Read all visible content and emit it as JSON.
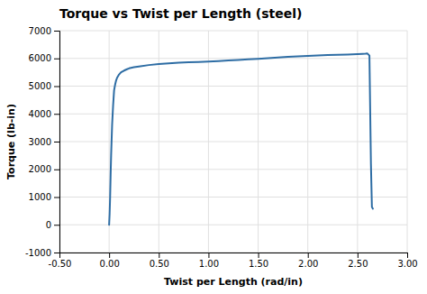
{
  "chart_data": {
    "type": "line",
    "title": "Torque vs Twist per Length (steel)",
    "xlabel": "Twist per Length (rad/in)",
    "ylabel": "Torque (lb-in)",
    "color": "#2E6DA4",
    "grid": true,
    "xlim": [
      -0.5,
      3.0
    ],
    "ylim": [
      -1000,
      7000
    ],
    "xticks": [
      {
        "value": -0.5,
        "label": "-0.50"
      },
      {
        "value": 0.0,
        "label": "0.00"
      },
      {
        "value": 0.5,
        "label": "0.50"
      },
      {
        "value": 1.0,
        "label": "1.00"
      },
      {
        "value": 1.5,
        "label": "1.50"
      },
      {
        "value": 2.0,
        "label": "2.00"
      },
      {
        "value": 2.5,
        "label": "2.50"
      },
      {
        "value": 3.0,
        "label": "3.00"
      }
    ],
    "yticks": [
      -1000,
      0,
      1000,
      2000,
      3000,
      4000,
      5000,
      6000,
      7000
    ],
    "x": [
      0.0,
      0.005,
      0.01,
      0.015,
      0.02,
      0.03,
      0.04,
      0.05,
      0.06,
      0.07,
      0.08,
      0.1,
      0.12,
      0.15,
      0.18,
      0.2,
      0.25,
      0.3,
      0.4,
      0.5,
      0.6,
      0.7,
      0.8,
      0.9,
      1.0,
      1.1,
      1.2,
      1.3,
      1.4,
      1.5,
      1.6,
      1.7,
      1.8,
      1.9,
      2.0,
      2.1,
      2.2,
      2.3,
      2.4,
      2.5,
      2.55,
      2.58,
      2.6,
      2.62,
      2.635,
      2.645,
      2.655
    ],
    "values": [
      0,
      400,
      1000,
      1800,
      2500,
      3600,
      4300,
      4850,
      5050,
      5200,
      5300,
      5420,
      5500,
      5560,
      5610,
      5640,
      5680,
      5710,
      5760,
      5800,
      5825,
      5845,
      5858,
      5870,
      5885,
      5905,
      5925,
      5945,
      5965,
      5985,
      6005,
      6030,
      6055,
      6075,
      6090,
      6105,
      6118,
      6130,
      6142,
      6155,
      6162,
      6168,
      6175,
      6100,
      2200,
      640,
      580
    ]
  }
}
